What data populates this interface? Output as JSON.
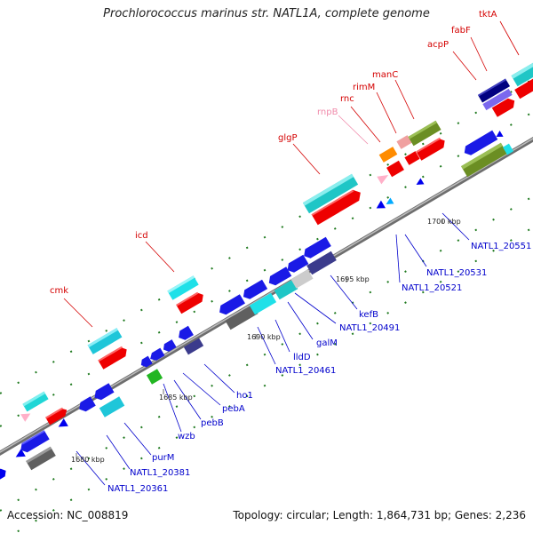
{
  "title": "Prochlorococcus marinus str. NATL1A, complete genome",
  "accession": "Accession: NC_008819",
  "summary": "Topology: circular; Length: 1,864,731 bp; Genes: 2,236",
  "colors": {
    "backbone": "#8c8c8c",
    "label_top": "#d40000",
    "label_bottom": "#0000cc",
    "label_rna": "#f08aaa",
    "ticks": "#1f7a1f"
  },
  "scale_labels": [
    "1680 kbp",
    "1685 kbp",
    "1690 kbp",
    "1695 kbp",
    "1700 kbp"
  ],
  "top_labels": [
    "cmk",
    "icd",
    "glgP",
    "rnpB",
    "rnc",
    "rimM",
    "manC",
    "acpP",
    "fabF",
    "tktA"
  ],
  "bottom_labels": [
    "NATL1_20361",
    "NATL1_20381",
    "purM",
    "wzb",
    "pebB",
    "pebA",
    "ho1",
    "NATL1_20461",
    "lldD",
    "galM",
    "NATL1_20491",
    "kefB",
    "NATL1_20521",
    "NATL1_20531",
    "NATL1_20551"
  ]
}
